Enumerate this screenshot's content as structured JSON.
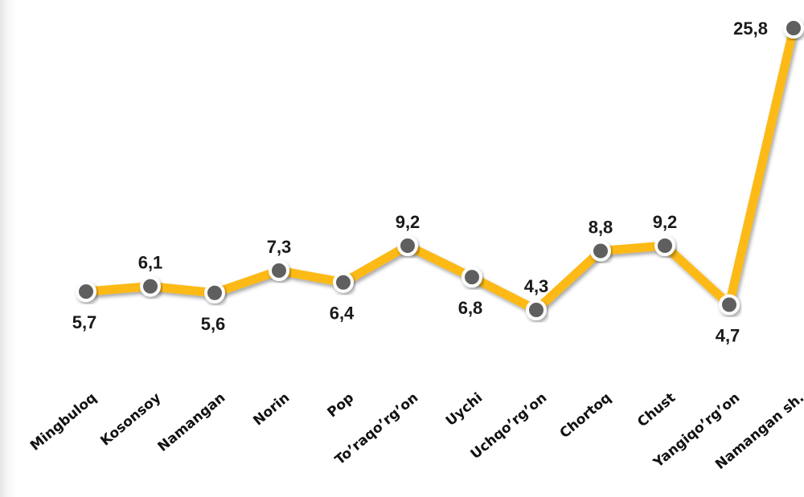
{
  "colors": {
    "line": "#FDBA12",
    "marker_fill": "#5f5f5f",
    "marker_stroke": "#ffffff",
    "text": "#1a1a1a"
  },
  "chart_data": {
    "type": "line",
    "title": "",
    "xlabel": "",
    "ylabel": "",
    "grid": false,
    "legend": "none",
    "categories": [
      "Mingbuloq",
      "Kosonsoy",
      "Namangan",
      "Norin",
      "Pop",
      "To’raqo’rg’on",
      "Uychi",
      "Uchqo’rg’on",
      "Chortoq",
      "Chust",
      "Yangiqo’rg’on",
      "Namangan sh."
    ],
    "series": [
      {
        "values": [
          5.7,
          6.1,
          5.6,
          7.3,
          6.4,
          9.2,
          6.8,
          4.3,
          8.8,
          9.2,
          4.7,
          25.8
        ],
        "labels": [
          "5,7",
          "6,1",
          "5,6",
          "7,3",
          "6,4",
          "9,2",
          "6,8",
          "4,3",
          "8,8",
          "9,2",
          "4,7",
          "25,8"
        ],
        "label_side": [
          "below",
          "above",
          "below",
          "above",
          "below",
          "above",
          "below",
          "above",
          "above",
          "above",
          "below",
          "left"
        ]
      }
    ]
  }
}
